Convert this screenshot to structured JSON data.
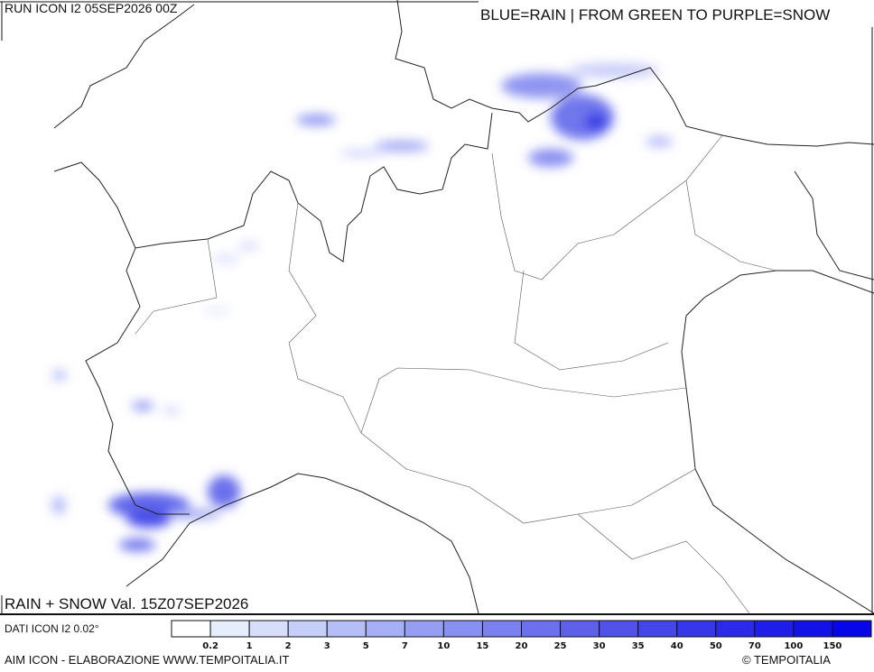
{
  "header": {
    "run": "RUN ICON I2 05SEP2026 00Z",
    "legend_note": "BLUE=RAIN | FROM GREEN TO PURPLE=SNOW"
  },
  "map": {
    "caption": "RAIN + SNOW Val. 15Z07SEP2026"
  },
  "footer": {
    "source": "DATI ICON I2 0.02°",
    "credit": "AIM ICON - ELABORAZIONE WWW.TEMPOITALIA.IT",
    "copyright": "© TEMPOITALIA"
  },
  "colorbar": {
    "colors": [
      "#ffffff",
      "#e6eefc",
      "#d6defa",
      "#c6cefa",
      "#b6bef8",
      "#a6aef6",
      "#969ef4",
      "#8890f2",
      "#7a80f0",
      "#6c70ee",
      "#5e60ec",
      "#5052ea",
      "#4446e8",
      "#3638e8",
      "#2a2ae8",
      "#1e1ee8",
      "#1212e8",
      "#0606e6"
    ],
    "labels": [
      0.2,
      1,
      2,
      3,
      5,
      7,
      10,
      15,
      20,
      25,
      30,
      35,
      40,
      50,
      70,
      100,
      150
    ]
  }
}
